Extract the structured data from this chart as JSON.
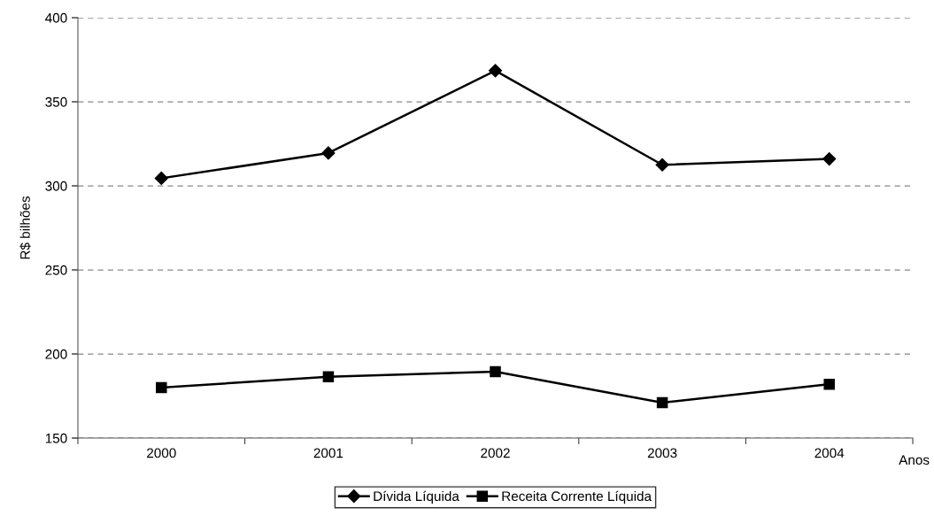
{
  "chart_data": {
    "type": "line",
    "xlabel": "Anos",
    "ylabel": "R$ bilhões",
    "categories": [
      "2000",
      "2001",
      "2002",
      "2003",
      "2004"
    ],
    "series": [
      {
        "name": "Dívida Líquida",
        "color": "#000000",
        "marker": "diamond",
        "values": [
          304.5,
          319.5,
          368.5,
          312.5,
          316
        ]
      },
      {
        "name": "Receita Corrente Líquida",
        "color": "#000000",
        "marker": "square",
        "values": [
          180,
          186.5,
          189.5,
          171,
          182
        ]
      }
    ],
    "ylim": [
      150,
      400
    ],
    "yticks": [
      150,
      200,
      250,
      300,
      350,
      400
    ],
    "grid": "y",
    "legend": "bottom",
    "line_style": "solid"
  }
}
